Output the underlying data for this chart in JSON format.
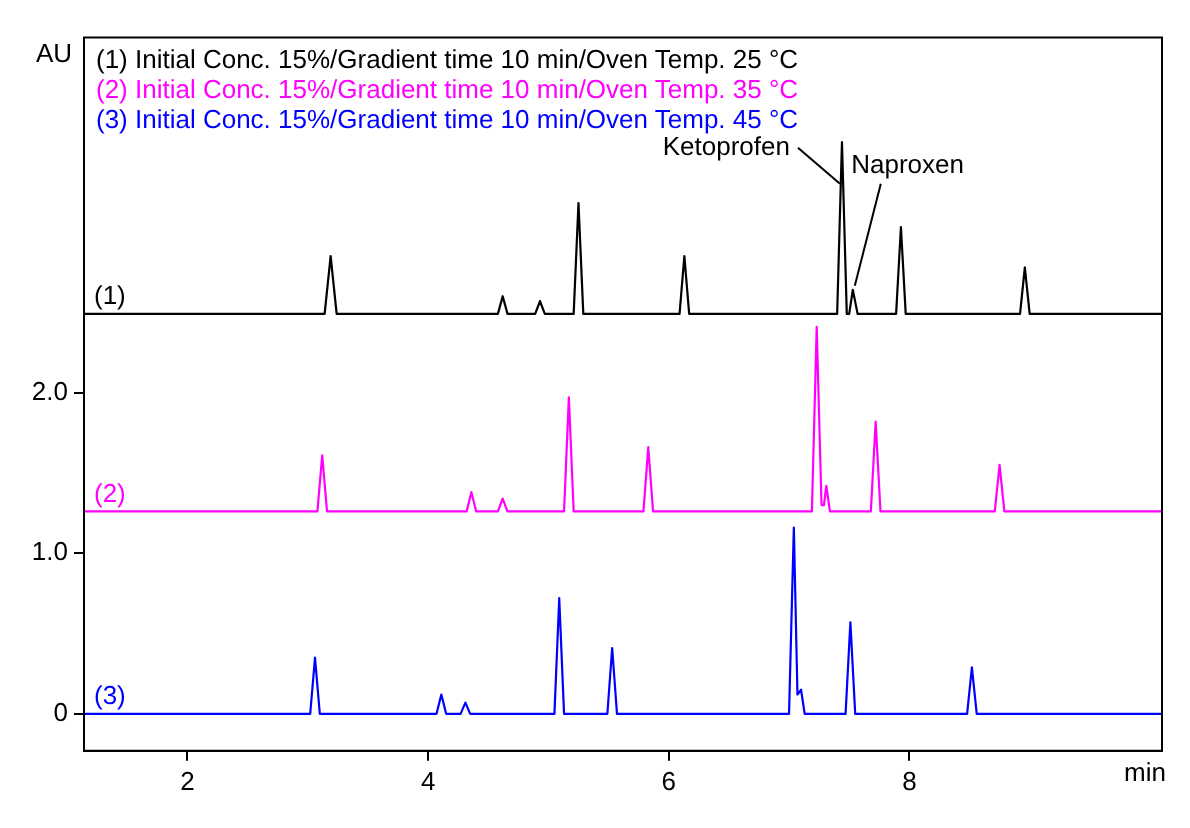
{
  "chart_data": {
    "type": "line",
    "xlabel": "min",
    "ylabel": "AU",
    "xlim": [
      1.14,
      10.1
    ],
    "xticks": [
      2,
      4,
      6,
      8
    ],
    "ylim": [
      -0.23,
      4.21
    ],
    "yticks": [
      0,
      {
        "value": 1,
        "label": "1.0"
      },
      {
        "value": 2,
        "label": "2.0"
      }
    ],
    "grid": false,
    "legend": "top left",
    "marker": "none",
    "line_style": "solid",
    "series": [
      {
        "name": "(1) Initial Conc. 15%/Gradient time 10 min/Oven Temp. 25 °C",
        "color": "#000000",
        "x": [
          1.14,
          3.14,
          3.19,
          3.24,
          4.58,
          4.62,
          4.66,
          4.89,
          4.93,
          4.97,
          5.21,
          5.25,
          5.29,
          6.09,
          6.13,
          6.17,
          7.4,
          7.44,
          7.48,
          7.5,
          7.53,
          7.57,
          7.89,
          7.93,
          7.97,
          8.92,
          8.96,
          9.0,
          10.1
        ],
        "values": [
          2.49,
          2.49,
          2.85,
          2.49,
          2.49,
          2.6,
          2.49,
          2.49,
          2.57,
          2.49,
          2.49,
          3.18,
          2.49,
          2.49,
          2.85,
          2.49,
          2.49,
          3.56,
          2.49,
          2.49,
          2.64,
          2.49,
          2.49,
          3.03,
          2.49,
          2.49,
          2.78,
          2.49,
          2.49
        ]
      },
      {
        "name": "(2) Initial Conc. 15%/Gradient time 10 min/Oven Temp. 35 °C",
        "color": "#ff00ff",
        "x": [
          1.14,
          3.08,
          3.12,
          3.16,
          4.32,
          4.36,
          4.4,
          4.58,
          4.62,
          4.66,
          5.13,
          5.17,
          5.21,
          5.79,
          5.83,
          5.87,
          7.19,
          7.23,
          7.27,
          7.29,
          7.31,
          7.34,
          7.68,
          7.72,
          7.76,
          8.71,
          8.75,
          8.79,
          10.1
        ],
        "values": [
          1.26,
          1.26,
          1.61,
          1.26,
          1.26,
          1.38,
          1.26,
          1.26,
          1.34,
          1.26,
          1.26,
          1.97,
          1.26,
          1.26,
          1.66,
          1.26,
          1.26,
          2.41,
          1.3,
          1.3,
          1.42,
          1.26,
          1.26,
          1.82,
          1.26,
          1.26,
          1.55,
          1.26,
          1.26
        ]
      },
      {
        "name": "(3) Initial Conc. 15%/Gradient time 10 min/Oven Temp. 45 °C",
        "color": "#0000ff",
        "x": [
          1.14,
          3.02,
          3.06,
          3.1,
          4.07,
          4.11,
          4.15,
          4.27,
          4.31,
          4.35,
          5.05,
          5.09,
          5.13,
          5.49,
          5.53,
          5.57,
          7.0,
          7.04,
          7.07,
          7.1,
          7.13,
          7.47,
          7.51,
          7.55,
          8.48,
          8.52,
          8.56,
          10.1
        ],
        "values": [
          0,
          0,
          0.35,
          0,
          0,
          0.12,
          0,
          0,
          0.07,
          0,
          0,
          0.72,
          0,
          0,
          0.41,
          0,
          0,
          1.16,
          0.12,
          0.15,
          0,
          0,
          0.57,
          0,
          0,
          0.29,
          0,
          0
        ]
      }
    ],
    "annotations": [
      "(1)",
      "(2)",
      "(3)",
      {
        "text": "Ketoprofen",
        "x": 7.44,
        "y": 3.3
      },
      {
        "text": "Naproxen",
        "x": 7.53,
        "y": 2.64
      }
    ]
  }
}
